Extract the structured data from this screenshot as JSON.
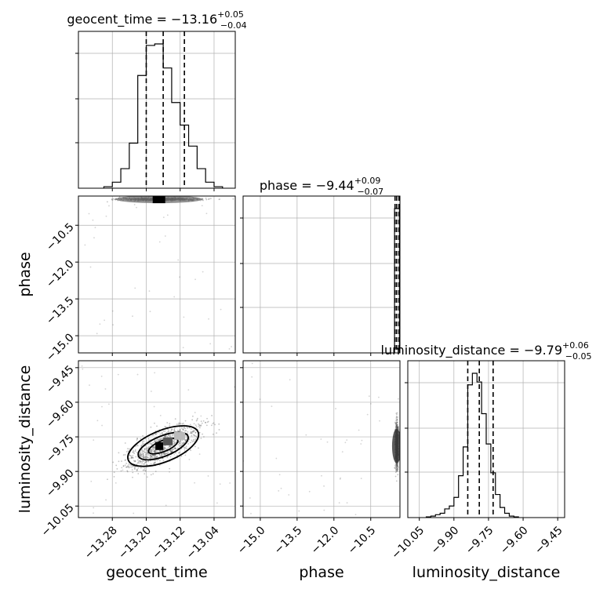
{
  "colors": {
    "points": "#555555",
    "density_dark": "#000000",
    "density_mid": "#555555",
    "density_light": "#bbbbbb",
    "grid": "#b0b0b0",
    "frame": "#000000"
  },
  "chart_data": {
    "type": "corner",
    "parameters": [
      {
        "name": "geocent_time",
        "xlabel": "geocent_time",
        "title": {
          "prefix": "geocent_time = ",
          "value": "−13.16",
          "plus": "+0.05",
          "minus": "−0.04"
        },
        "range": [
          -13.36,
          -12.99
        ],
        "ticks": [
          -13.28,
          -13.2,
          -13.12,
          -13.04
        ],
        "tick_labels": [
          "−13.28",
          "−13.20",
          "−13.12",
          "−13.04"
        ],
        "quantiles": [
          -13.2,
          -13.16,
          -13.11
        ],
        "histogram": {
          "edges": [
            -13.3,
            -13.28,
            -13.26,
            -13.24,
            -13.22,
            -13.2,
            -13.18,
            -13.16,
            -13.14,
            -13.12,
            -13.1,
            -13.08,
            -13.06,
            -13.04,
            -13.02
          ],
          "values": [
            0.01,
            0.04,
            0.13,
            0.3,
            0.75,
            0.95,
            0.96,
            0.8,
            0.57,
            0.42,
            0.28,
            0.13,
            0.04,
            0.01
          ]
        }
      },
      {
        "name": "phase",
        "xlabel": "phase",
        "ylabel": "phase",
        "title": {
          "prefix": "phase = ",
          "value": "−9.44",
          "plus": "+0.09",
          "minus": "−0.07"
        },
        "range": [
          -15.7,
          -9.31
        ],
        "ticks": [
          -15.0,
          -13.5,
          -12.0,
          -10.5
        ],
        "tick_labels": [
          "−15.0",
          "−13.5",
          "−12.0",
          "−10.5"
        ],
        "quantiles": [
          -9.51,
          -9.44,
          -9.35
        ],
        "histogram": {
          "edges": [
            -9.53,
            -9.48,
            -9.43,
            -9.38,
            -9.33
          ],
          "values": [
            1.0,
            1.0,
            1.0,
            1.0
          ]
        }
      },
      {
        "name": "luminosity_distance",
        "xlabel": "luminosity_distance",
        "ylabel": "luminosity_distance",
        "title": {
          "prefix": "luminosity_distance = ",
          "value": "−9.79",
          "plus": "+0.06",
          "minus": "−0.05"
        },
        "range": [
          -10.1,
          -9.42
        ],
        "ticks": [
          -10.05,
          -9.9,
          -9.75,
          -9.6,
          -9.45
        ],
        "tick_labels": [
          "−10.05",
          "−9.90",
          "−9.75",
          "−9.60",
          "−9.45"
        ],
        "quantiles": [
          -9.84,
          -9.79,
          -9.73
        ],
        "histogram": {
          "edges": [
            -10.02,
            -10.0,
            -9.98,
            -9.96,
            -9.94,
            -9.92,
            -9.9,
            -9.88,
            -9.86,
            -9.84,
            -9.82,
            -9.8,
            -9.78,
            -9.76,
            -9.74,
            -9.72,
            -9.7,
            -9.68,
            -9.66,
            -9.64,
            -9.62
          ],
          "values": [
            0.005,
            0.01,
            0.02,
            0.03,
            0.06,
            0.08,
            0.14,
            0.29,
            0.49,
            0.92,
            1.0,
            0.94,
            0.72,
            0.51,
            0.31,
            0.16,
            0.07,
            0.03,
            0.01,
            0.005
          ]
        }
      }
    ],
    "joint_centers": {
      "geocent_time_phase": {
        "x": -13.17,
        "y": -9.44
      },
      "geocent_time_luminosity_distance": {
        "x": -13.16,
        "y": -9.79
      },
      "phase_luminosity_distance": {
        "x": -9.44,
        "y": -9.79
      }
    },
    "grid": true,
    "legend": "none"
  }
}
